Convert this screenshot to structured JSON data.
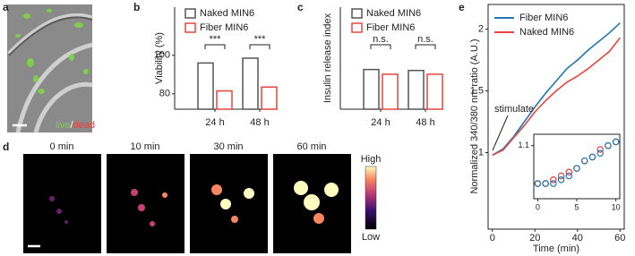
{
  "panel_labels": [
    "a",
    "b",
    "c",
    "d",
    "e"
  ],
  "panel_a": {
    "stain": [
      "live",
      "/",
      "dead"
    ]
  },
  "panel_d": {
    "times": [
      "0 min",
      "10 min",
      "30 min",
      "60 min"
    ],
    "colorbar": {
      "high": "High",
      "low": "Low"
    }
  },
  "chart_data": [
    {
      "type": "bar",
      "y_label": "Viability (%)",
      "categories": [
        "24 h",
        "48 h"
      ],
      "series": [
        {
          "name": "Naked MIN6",
          "color": "#555555",
          "values": [
            96,
            98.5
          ]
        },
        {
          "name": "Fiber MIN6",
          "color": "#e8453c",
          "values": [
            81.5,
            83.5
          ]
        }
      ],
      "ylim": [
        72,
        125
      ],
      "yticks": [
        80,
        100
      ],
      "annotations": [
        "***",
        "***"
      ]
    },
    {
      "type": "bar",
      "y_label": "Insulin release index",
      "categories": [
        "24 h",
        "48 h"
      ],
      "series": [
        {
          "name": "Naked MIN6",
          "color": "#555555",
          "values": [
            2.1,
            2.05
          ]
        },
        {
          "name": "Fiber MIN6",
          "color": "#e8453c",
          "values": [
            1.85,
            1.85
          ]
        }
      ],
      "ylim": [
        0,
        5.4
      ],
      "annotations": [
        "n.s.",
        "n.s."
      ]
    },
    {
      "type": "line",
      "x_label": "Time (min)",
      "y_label": "Normalized 340/380 nm ratio (A.U.)",
      "x": [
        0,
        5,
        10,
        15,
        20,
        25,
        30,
        35,
        40,
        45,
        50,
        55,
        60
      ],
      "series": [
        {
          "name": "Fiber MIN6",
          "color": "#1f77b4",
          "values": [
            0.98,
            1.03,
            1.13,
            1.25,
            1.37,
            1.48,
            1.58,
            1.68,
            1.75,
            1.83,
            1.9,
            1.97,
            2.05
          ]
        },
        {
          "name": "Naked MIN6",
          "color": "#e8453c",
          "values": [
            0.98,
            1.02,
            1.12,
            1.22,
            1.33,
            1.42,
            1.5,
            1.57,
            1.62,
            1.68,
            1.75,
            1.82,
            1.93
          ]
        }
      ],
      "xlim": [
        -2,
        62
      ],
      "ylim": [
        0.38,
        2.2
      ],
      "xticks": [
        0,
        20,
        40,
        60
      ],
      "yticks": [
        1,
        1.5,
        2
      ],
      "annotations": [
        "stimulate"
      ]
    },
    {
      "type": "scatter",
      "x": [
        0,
        1,
        2,
        3,
        4,
        5,
        6,
        7,
        8,
        9,
        10
      ],
      "series": [
        {
          "color": "#e8453c",
          "values": [
            1.0,
            1.0,
            1.01,
            1.02,
            1.03,
            1.04,
            1.06,
            1.07,
            1.09,
            1.1,
            1.11
          ]
        },
        {
          "color": "#1f77b4",
          "values": [
            1.0,
            1.0,
            1.0,
            1.01,
            1.02,
            1.04,
            1.06,
            1.07,
            1.08,
            1.1,
            1.11
          ]
        }
      ],
      "xlim": [
        -0.5,
        10.5
      ],
      "ylim": [
        0.96,
        1.13
      ],
      "xticks": [
        0,
        5,
        10
      ],
      "yticks": [
        1.1
      ]
    }
  ]
}
